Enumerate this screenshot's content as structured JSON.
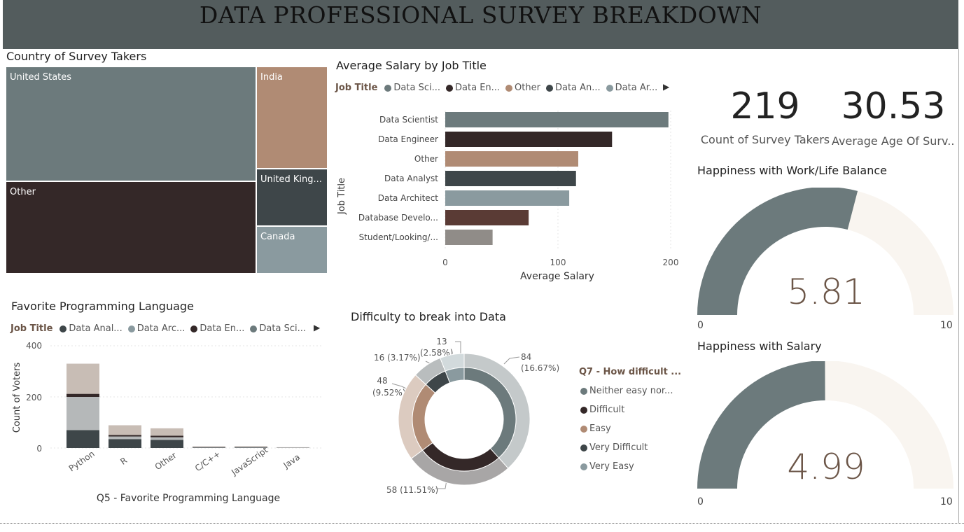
{
  "header": {
    "title": "DATA PROFESSIONAL SURVEY BREAKDOWN"
  },
  "treemap": {
    "title": "Country of Survey Takers",
    "items": [
      {
        "label": "United States",
        "color": "#6c7a7c"
      },
      {
        "label": "India",
        "color": "#b08b74"
      },
      {
        "label": "Other",
        "color": "#342828"
      },
      {
        "label": "United King...",
        "color": "#3e4649"
      },
      {
        "label": "Canada",
        "color": "#8a9a9f"
      }
    ]
  },
  "salary_chart": {
    "title": "Average Salary by Job Title",
    "legend_title": "Job Title",
    "legend": [
      {
        "label": "Data Sci...",
        "color": "#6c7a7c"
      },
      {
        "label": "Data En...",
        "color": "#342828"
      },
      {
        "label": "Other",
        "color": "#b08b74"
      },
      {
        "label": "Data An...",
        "color": "#3e4649"
      },
      {
        "label": "Data Ar...",
        "color": "#8a9a9f"
      }
    ],
    "ylabel": "Job Title",
    "xlabel": "Average Salary",
    "ticks": [
      "0",
      "100",
      "200"
    ]
  },
  "kpis": [
    {
      "value": "219",
      "label": "Count of Survey Takers"
    },
    {
      "value": "30.53",
      "label": "Average Age Of Surv..."
    }
  ],
  "gauges": [
    {
      "title": "Happiness with Work/Life Balance",
      "value": "5.81",
      "min": "0",
      "max": "10",
      "level": 5.81
    },
    {
      "title": "Happiness with Salary",
      "value": "4.99",
      "min": "0",
      "max": "10",
      "level": 4.99
    }
  ],
  "lang_chart": {
    "title": "Favorite Programming Language",
    "legend_title": "Job Title",
    "legend": [
      {
        "label": "Data Anal...",
        "color": "#3e4649"
      },
      {
        "label": "Data Arc...",
        "color": "#8a9a9f"
      },
      {
        "label": "Data En...",
        "color": "#342828"
      },
      {
        "label": "Data Sci...",
        "color": "#6c7a7c"
      }
    ],
    "ylabel": "Count of Voters",
    "xlabel": "Q5 - Favorite Programming Language",
    "yticks": [
      "400",
      "200",
      "0"
    ]
  },
  "donut_chart": {
    "title": "Difficulty to break into Data",
    "legend_title": "Q7 - How difficult ...",
    "legend": [
      {
        "label": "Neither easy nor...",
        "color": "#6c7a7c"
      },
      {
        "label": "Difficult",
        "color": "#342828"
      },
      {
        "label": "Easy",
        "color": "#b08b74"
      },
      {
        "label": "Very Difficult",
        "color": "#3e4649"
      },
      {
        "label": "Very Easy",
        "color": "#8a9a9f"
      }
    ],
    "labels": [
      "84",
      "(16.67%)",
      "58 (11.51%)",
      "48",
      "(9.52%)",
      "16 (3.17%)",
      "13",
      "(2.58%)"
    ]
  },
  "chart_data": [
    {
      "type": "bar",
      "title": "Average Salary by Job Title",
      "xlabel": "Average Salary",
      "ylabel": "Job Title",
      "categories": [
        "Data Scientist",
        "Data Engineer",
        "Other",
        "Data Analyst",
        "Data Architect",
        "Database Develo...",
        "Student/Looking/..."
      ],
      "values": [
        198,
        148,
        118,
        116,
        110,
        74,
        42
      ],
      "colors": [
        "#6c7a7c",
        "#342828",
        "#b08b74",
        "#3e4649",
        "#8a9a9f",
        "#5a3b35",
        "#908c88"
      ],
      "xlim": [
        0,
        200
      ]
    },
    {
      "type": "bar",
      "title": "Favorite Programming Language",
      "xlabel": "Q5 - Favorite Programming Language",
      "ylabel": "Count of Voters",
      "categories": [
        "Python",
        "R",
        "Other",
        "C/C++",
        "JavaScript",
        "Java"
      ],
      "series": [
        {
          "name": "Data Anal...",
          "values": [
            70,
            35,
            32,
            2,
            2,
            1
          ],
          "color": "#3e4649"
        },
        {
          "name": "Data Arc...",
          "values": [
            130,
            10,
            10,
            1,
            2,
            1
          ],
          "color": "#b5b8b9"
        },
        {
          "name": "Data En...",
          "values": [
            12,
            6,
            6,
            1,
            1,
            0
          ],
          "color": "#342828"
        },
        {
          "name": "Data Sci...",
          "values": [
            118,
            38,
            29,
            2,
            2,
            1
          ],
          "color": "#c8bdb5"
        }
      ],
      "ylim": [
        0,
        400
      ]
    },
    {
      "type": "pie",
      "title": "Difficulty to break into Data",
      "categories": [
        "Neither easy nor...",
        "Difficult",
        "Easy",
        "Very Difficult",
        "Very Easy"
      ],
      "values": [
        84,
        58,
        48,
        16,
        13
      ]
    }
  ]
}
